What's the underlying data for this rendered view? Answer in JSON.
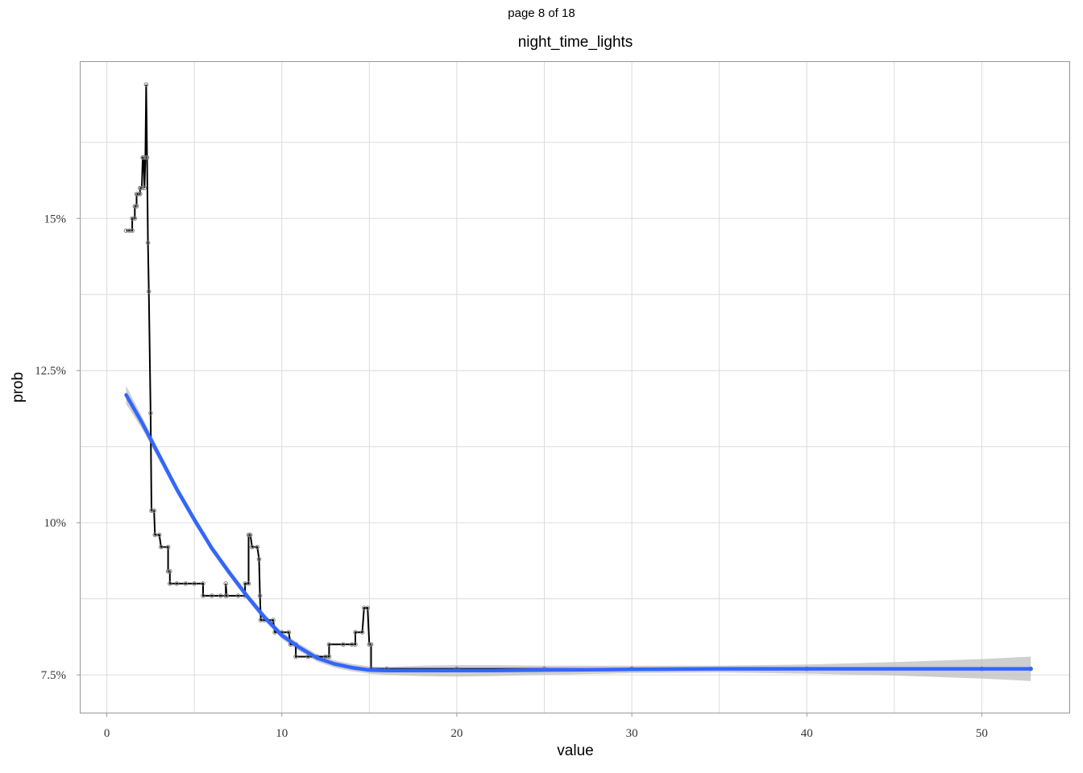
{
  "page_label": "page 8 of 18",
  "colors": {
    "data_line": "#000000",
    "data_point": "#7f7f7f",
    "smooth_line": "#3366ff",
    "confidence_band": "#bfbfbf",
    "grid": "#dcdcdc",
    "panel_border": "#999999"
  },
  "chart_data": {
    "type": "line",
    "title": "night_time_lights",
    "xlabel": "value",
    "ylabel": "prob",
    "xlim": [
      -1.5,
      55
    ],
    "ylim": [
      0.0688,
      0.1757
    ],
    "x_ticks": [
      0,
      10,
      20,
      30,
      40,
      50
    ],
    "x_tick_labels": [
      "0",
      "10",
      "20",
      "30",
      "40",
      "50"
    ],
    "y_ticks": [
      0.075,
      0.1,
      0.125,
      0.15
    ],
    "y_tick_labels": [
      "7.5%",
      "10%",
      "12.5%",
      "15%"
    ],
    "grid": true,
    "legend": "none",
    "series": [
      {
        "kind": "step",
        "points": [
          [
            1.1,
            0.148
          ],
          [
            1.3,
            0.148
          ],
          [
            1.45,
            0.148
          ],
          [
            1.45,
            0.15
          ],
          [
            1.6,
            0.15
          ],
          [
            1.6,
            0.152
          ],
          [
            1.7,
            0.152
          ],
          [
            1.7,
            0.154
          ],
          [
            1.8,
            0.154
          ],
          [
            1.9,
            0.154
          ],
          [
            1.9,
            0.155
          ],
          [
            2.0,
            0.155
          ],
          [
            2.05,
            0.16
          ],
          [
            2.1,
            0.16
          ],
          [
            2.15,
            0.155
          ],
          [
            2.2,
            0.16
          ],
          [
            2.25,
            0.172
          ],
          [
            2.3,
            0.16
          ],
          [
            2.35,
            0.146
          ],
          [
            2.4,
            0.138
          ],
          [
            2.5,
            0.118
          ],
          [
            2.55,
            0.102
          ],
          [
            2.7,
            0.102
          ],
          [
            2.75,
            0.098
          ],
          [
            3.0,
            0.098
          ],
          [
            3.1,
            0.096
          ],
          [
            3.5,
            0.096
          ],
          [
            3.5,
            0.092
          ],
          [
            3.6,
            0.092
          ],
          [
            3.6,
            0.09
          ],
          [
            4.0,
            0.09
          ],
          [
            4.5,
            0.09
          ],
          [
            5.0,
            0.09
          ],
          [
            5.5,
            0.09
          ],
          [
            5.5,
            0.088
          ],
          [
            6.0,
            0.088
          ],
          [
            6.5,
            0.088
          ],
          [
            6.8,
            0.088
          ],
          [
            6.8,
            0.09
          ],
          [
            6.85,
            0.088
          ],
          [
            7.5,
            0.088
          ],
          [
            7.9,
            0.088
          ],
          [
            7.9,
            0.09
          ],
          [
            8.1,
            0.09
          ],
          [
            8.1,
            0.098
          ],
          [
            8.2,
            0.098
          ],
          [
            8.3,
            0.096
          ],
          [
            8.6,
            0.096
          ],
          [
            8.7,
            0.094
          ],
          [
            8.75,
            0.088
          ],
          [
            8.8,
            0.084
          ],
          [
            9.0,
            0.084
          ],
          [
            9.5,
            0.084
          ],
          [
            9.6,
            0.082
          ],
          [
            10.0,
            0.082
          ],
          [
            10.4,
            0.082
          ],
          [
            10.5,
            0.08
          ],
          [
            10.8,
            0.08
          ],
          [
            10.8,
            0.078
          ],
          [
            11.5,
            0.078
          ],
          [
            12.0,
            0.078
          ],
          [
            12.5,
            0.078
          ],
          [
            12.7,
            0.078
          ],
          [
            12.7,
            0.08
          ],
          [
            13.5,
            0.08
          ],
          [
            14.0,
            0.08
          ],
          [
            14.2,
            0.08
          ],
          [
            14.2,
            0.082
          ],
          [
            14.6,
            0.082
          ],
          [
            14.7,
            0.086
          ],
          [
            14.9,
            0.086
          ],
          [
            15.0,
            0.08
          ],
          [
            15.1,
            0.08
          ],
          [
            15.1,
            0.076
          ],
          [
            16.0,
            0.076
          ],
          [
            20.0,
            0.076
          ],
          [
            25.0,
            0.076
          ],
          [
            30.0,
            0.076
          ],
          [
            40.0,
            0.076
          ],
          [
            50.0,
            0.076
          ],
          [
            52.8,
            0.076
          ]
        ]
      },
      {
        "kind": "smooth",
        "points": [
          [
            1.1,
            0.121
          ],
          [
            2.0,
            0.1165
          ],
          [
            3.0,
            0.111
          ],
          [
            4.0,
            0.1055
          ],
          [
            5.0,
            0.1005
          ],
          [
            6.0,
            0.0958
          ],
          [
            7.0,
            0.0918
          ],
          [
            8.0,
            0.088
          ],
          [
            9.0,
            0.0845
          ],
          [
            10.0,
            0.0815
          ],
          [
            11.0,
            0.0795
          ],
          [
            12.0,
            0.0778
          ],
          [
            13.0,
            0.0768
          ],
          [
            14.0,
            0.0762
          ],
          [
            15.0,
            0.0758
          ],
          [
            16.0,
            0.0757
          ],
          [
            18.0,
            0.0757
          ],
          [
            20.0,
            0.0757
          ],
          [
            22.0,
            0.0757
          ],
          [
            25.0,
            0.0758
          ],
          [
            30.0,
            0.0759
          ],
          [
            35.0,
            0.076
          ],
          [
            40.0,
            0.076
          ],
          [
            45.0,
            0.076
          ],
          [
            50.0,
            0.076
          ],
          [
            52.8,
            0.076
          ]
        ],
        "band": [
          [
            1.1,
            0.1195,
            0.1225
          ],
          [
            2.0,
            0.1155,
            0.1175
          ],
          [
            3.0,
            0.1102,
            0.1118
          ],
          [
            4.0,
            0.1048,
            0.1062
          ],
          [
            5.0,
            0.0998,
            0.1012
          ],
          [
            6.0,
            0.0952,
            0.0964
          ],
          [
            7.0,
            0.0912,
            0.0924
          ],
          [
            8.0,
            0.0874,
            0.0886
          ],
          [
            9.0,
            0.0839,
            0.0851
          ],
          [
            10.0,
            0.0809,
            0.0821
          ],
          [
            11.0,
            0.0789,
            0.0801
          ],
          [
            12.0,
            0.0772,
            0.0784
          ],
          [
            13.0,
            0.0762,
            0.0774
          ],
          [
            14.0,
            0.0756,
            0.0768
          ],
          [
            15.0,
            0.0752,
            0.0764
          ],
          [
            16.0,
            0.075,
            0.0763
          ],
          [
            18.0,
            0.0748,
            0.0765
          ],
          [
            20.0,
            0.0747,
            0.0766
          ],
          [
            22.0,
            0.0748,
            0.0766
          ],
          [
            25.0,
            0.075,
            0.0765
          ],
          [
            30.0,
            0.0753,
            0.0765
          ],
          [
            35.0,
            0.0754,
            0.0765
          ],
          [
            40.0,
            0.0752,
            0.0767
          ],
          [
            45.0,
            0.0749,
            0.0771
          ],
          [
            50.0,
            0.0744,
            0.0776
          ],
          [
            52.8,
            0.074,
            0.078
          ]
        ]
      }
    ]
  }
}
